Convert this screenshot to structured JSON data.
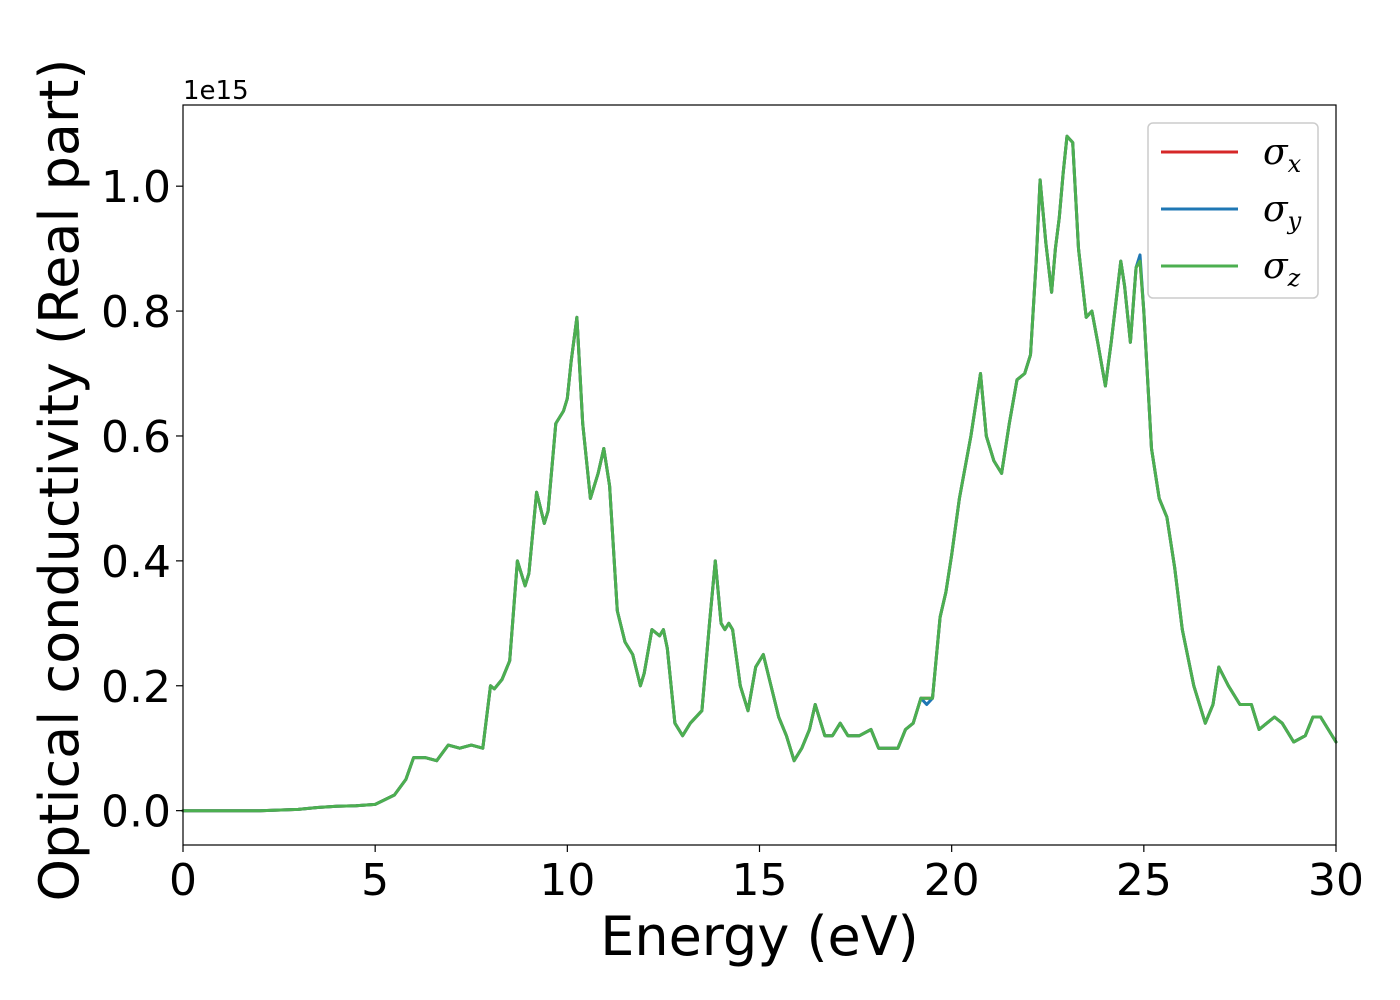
{
  "chart_data": {
    "type": "line",
    "xlabel": "Energy (eV)",
    "ylabel": "Optical conductivity (Real part)",
    "y_offset_label": "1e15",
    "xlim": [
      0,
      30
    ],
    "ylim": [
      -0.055,
      1.13
    ],
    "x_ticks": [
      0,
      5,
      10,
      15,
      20,
      25,
      30
    ],
    "x_tick_labels": [
      "0",
      "5",
      "10",
      "15",
      "20",
      "25",
      "30"
    ],
    "y_ticks": [
      0.0,
      0.2,
      0.4,
      0.6,
      0.8,
      1.0
    ],
    "y_tick_labels": [
      "0.0",
      "0.2",
      "0.4",
      "0.6",
      "0.8",
      "1.0"
    ],
    "grid": false,
    "legend_position": "top-right",
    "x": [
      0,
      1,
      2,
      3,
      3.5,
      4,
      4.5,
      5,
      5.5,
      5.8,
      6.0,
      6.3,
      6.6,
      6.9,
      7.2,
      7.5,
      7.8,
      8.0,
      8.1,
      8.3,
      8.5,
      8.7,
      8.9,
      9.0,
      9.2,
      9.4,
      9.5,
      9.7,
      9.9,
      10.0,
      10.1,
      10.25,
      10.4,
      10.6,
      10.8,
      10.95,
      11.1,
      11.3,
      11.5,
      11.7,
      11.9,
      12.0,
      12.2,
      12.4,
      12.5,
      12.6,
      12.8,
      13.0,
      13.2,
      13.5,
      13.7,
      13.85,
      14.0,
      14.1,
      14.2,
      14.3,
      14.5,
      14.7,
      14.9,
      15.1,
      15.3,
      15.5,
      15.7,
      15.9,
      16.1,
      16.3,
      16.45,
      16.7,
      16.9,
      17.1,
      17.3,
      17.6,
      17.9,
      18.1,
      18.3,
      18.6,
      18.8,
      19.0,
      19.2,
      19.35,
      19.5,
      19.7,
      19.85,
      20.0,
      20.2,
      20.5,
      20.75,
      20.9,
      21.1,
      21.3,
      21.5,
      21.7,
      21.9,
      22.05,
      22.2,
      22.3,
      22.45,
      22.6,
      22.7,
      22.8,
      22.9,
      23.0,
      23.15,
      23.3,
      23.5,
      23.65,
      23.8,
      24.0,
      24.15,
      24.4,
      24.5,
      24.65,
      24.8,
      24.9,
      25.0,
      25.2,
      25.4,
      25.6,
      25.8,
      26.0,
      26.3,
      26.6,
      26.8,
      26.95,
      27.2,
      27.5,
      27.8,
      28.0,
      28.2,
      28.4,
      28.6,
      28.9,
      29.2,
      29.4,
      29.6,
      30.0
    ],
    "series": [
      {
        "name": "σx",
        "color": "#d62728",
        "values": [
          0.0,
          0.0,
          0.0,
          0.002,
          0.005,
          0.007,
          0.008,
          0.01,
          0.025,
          0.05,
          0.085,
          0.085,
          0.08,
          0.105,
          0.1,
          0.105,
          0.1,
          0.2,
          0.195,
          0.21,
          0.24,
          0.4,
          0.36,
          0.38,
          0.51,
          0.46,
          0.48,
          0.62,
          0.64,
          0.66,
          0.72,
          0.79,
          0.62,
          0.5,
          0.54,
          0.58,
          0.52,
          0.32,
          0.27,
          0.25,
          0.2,
          0.22,
          0.29,
          0.28,
          0.29,
          0.26,
          0.14,
          0.12,
          0.14,
          0.16,
          0.3,
          0.4,
          0.3,
          0.29,
          0.3,
          0.29,
          0.2,
          0.16,
          0.23,
          0.25,
          0.2,
          0.15,
          0.12,
          0.08,
          0.1,
          0.13,
          0.17,
          0.12,
          0.12,
          0.14,
          0.12,
          0.12,
          0.13,
          0.1,
          0.1,
          0.1,
          0.13,
          0.14,
          0.18,
          0.18,
          0.18,
          0.31,
          0.35,
          0.41,
          0.5,
          0.6,
          0.7,
          0.6,
          0.56,
          0.54,
          0.62,
          0.69,
          0.7,
          0.73,
          0.88,
          1.01,
          0.91,
          0.83,
          0.9,
          0.95,
          1.02,
          1.08,
          1.07,
          0.9,
          0.79,
          0.8,
          0.75,
          0.68,
          0.75,
          0.88,
          0.84,
          0.75,
          0.87,
          0.88,
          0.8,
          0.58,
          0.5,
          0.47,
          0.39,
          0.29,
          0.2,
          0.14,
          0.17,
          0.23,
          0.2,
          0.17,
          0.17,
          0.13,
          0.14,
          0.15,
          0.14,
          0.11,
          0.12,
          0.15,
          0.15,
          0.11
        ]
      },
      {
        "name": "σy",
        "color": "#1f77b4",
        "values": [
          0.0,
          0.0,
          0.0,
          0.002,
          0.005,
          0.007,
          0.008,
          0.01,
          0.025,
          0.05,
          0.085,
          0.085,
          0.08,
          0.105,
          0.1,
          0.105,
          0.1,
          0.2,
          0.195,
          0.21,
          0.24,
          0.4,
          0.36,
          0.38,
          0.51,
          0.46,
          0.48,
          0.62,
          0.64,
          0.66,
          0.72,
          0.79,
          0.62,
          0.5,
          0.54,
          0.58,
          0.52,
          0.32,
          0.27,
          0.25,
          0.2,
          0.22,
          0.29,
          0.28,
          0.29,
          0.26,
          0.14,
          0.12,
          0.14,
          0.16,
          0.3,
          0.4,
          0.3,
          0.29,
          0.3,
          0.29,
          0.2,
          0.16,
          0.23,
          0.25,
          0.2,
          0.15,
          0.12,
          0.08,
          0.1,
          0.13,
          0.17,
          0.12,
          0.12,
          0.14,
          0.12,
          0.12,
          0.13,
          0.1,
          0.1,
          0.1,
          0.13,
          0.14,
          0.18,
          0.17,
          0.18,
          0.31,
          0.35,
          0.41,
          0.5,
          0.6,
          0.7,
          0.6,
          0.56,
          0.54,
          0.62,
          0.69,
          0.7,
          0.73,
          0.88,
          1.01,
          0.91,
          0.83,
          0.9,
          0.95,
          1.02,
          1.08,
          1.07,
          0.9,
          0.79,
          0.8,
          0.75,
          0.68,
          0.75,
          0.88,
          0.84,
          0.75,
          0.87,
          0.89,
          0.8,
          0.58,
          0.5,
          0.47,
          0.39,
          0.29,
          0.2,
          0.14,
          0.17,
          0.23,
          0.2,
          0.17,
          0.17,
          0.13,
          0.14,
          0.15,
          0.14,
          0.11,
          0.12,
          0.15,
          0.15,
          0.11
        ]
      },
      {
        "name": "σz",
        "color": "#4caf50",
        "values": [
          0.0,
          0.0,
          0.0,
          0.002,
          0.005,
          0.007,
          0.008,
          0.01,
          0.025,
          0.05,
          0.085,
          0.085,
          0.08,
          0.105,
          0.1,
          0.105,
          0.1,
          0.2,
          0.195,
          0.21,
          0.24,
          0.4,
          0.36,
          0.38,
          0.51,
          0.46,
          0.48,
          0.62,
          0.64,
          0.66,
          0.72,
          0.79,
          0.62,
          0.5,
          0.54,
          0.58,
          0.52,
          0.32,
          0.27,
          0.25,
          0.2,
          0.22,
          0.29,
          0.28,
          0.29,
          0.26,
          0.14,
          0.12,
          0.14,
          0.16,
          0.3,
          0.4,
          0.3,
          0.29,
          0.3,
          0.29,
          0.2,
          0.16,
          0.23,
          0.25,
          0.2,
          0.15,
          0.12,
          0.08,
          0.1,
          0.13,
          0.17,
          0.12,
          0.12,
          0.14,
          0.12,
          0.12,
          0.13,
          0.1,
          0.1,
          0.1,
          0.13,
          0.14,
          0.18,
          0.18,
          0.18,
          0.31,
          0.35,
          0.41,
          0.5,
          0.6,
          0.7,
          0.6,
          0.56,
          0.54,
          0.62,
          0.69,
          0.7,
          0.73,
          0.88,
          1.01,
          0.91,
          0.83,
          0.9,
          0.95,
          1.02,
          1.08,
          1.07,
          0.9,
          0.79,
          0.8,
          0.75,
          0.68,
          0.75,
          0.88,
          0.84,
          0.75,
          0.87,
          0.88,
          0.8,
          0.58,
          0.5,
          0.47,
          0.39,
          0.29,
          0.2,
          0.14,
          0.17,
          0.23,
          0.2,
          0.17,
          0.17,
          0.13,
          0.14,
          0.15,
          0.14,
          0.11,
          0.12,
          0.15,
          0.15,
          0.11
        ]
      }
    ]
  },
  "legend": {
    "entries": [
      {
        "symbol": "σ",
        "sub": "x",
        "color": "#d62728"
      },
      {
        "symbol": "σ",
        "sub": "y",
        "color": "#1f77b4"
      },
      {
        "symbol": "σ",
        "sub": "z",
        "color": "#4caf50"
      }
    ]
  }
}
